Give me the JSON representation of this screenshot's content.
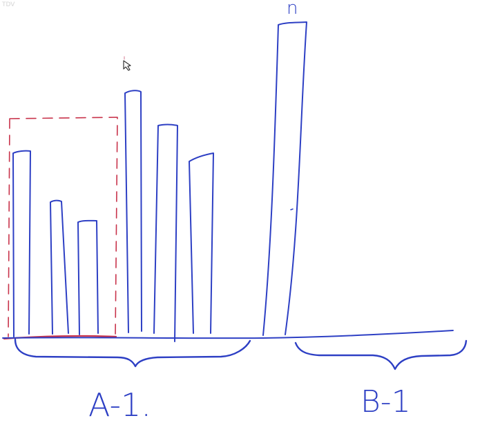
{
  "top_label": "n",
  "group_left_label": "A-1.",
  "group_right_label": "B-1",
  "corner_mark": "TDV",
  "colors": {
    "ink_blue": "#2d3fc4",
    "ink_red": "#c8324a",
    "ink_pink": "#d47a90",
    "background": "#ffffff"
  },
  "icons": [
    "cursor-arrow-icon"
  ]
}
